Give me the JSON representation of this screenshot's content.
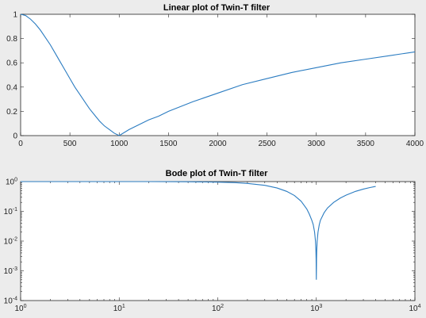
{
  "figure_background": "#ececec",
  "series_color": "#2b7cc1",
  "chart_data": [
    {
      "type": "line",
      "title": "Linear plot of Twin-T filter",
      "xlabel": "",
      "ylabel": "",
      "xlim": [
        0,
        4000
      ],
      "ylim": [
        0,
        1
      ],
      "xscale": "linear",
      "yscale": "linear",
      "grid": false,
      "legend": "none",
      "xticks": [
        0,
        500,
        1000,
        1500,
        2000,
        2500,
        3000,
        3500,
        4000
      ],
      "xtick_labels": [
        "0",
        "500",
        "1000",
        "1500",
        "2000",
        "2500",
        "3000",
        "3500",
        "4000"
      ],
      "yticks": [
        0,
        0.2,
        0.4,
        0.6,
        0.8,
        1
      ],
      "ytick_labels": [
        "0",
        "0.2",
        "0.4",
        "0.6",
        "0.8",
        "1"
      ],
      "series": [
        {
          "x": [
            0,
            50,
            100,
            150,
            200,
            250,
            300,
            350,
            400,
            450,
            500,
            550,
            600,
            650,
            700,
            750,
            800,
            850,
            900,
            950,
            1000,
            1100,
            1200,
            1300,
            1400,
            1500,
            1750,
            2000,
            2250,
            2500,
            2750,
            3000,
            3250,
            3500,
            3750,
            4000
          ],
          "y": [
            1.0,
            0.99,
            0.96,
            0.92,
            0.87,
            0.81,
            0.75,
            0.68,
            0.61,
            0.54,
            0.47,
            0.4,
            0.34,
            0.28,
            0.22,
            0.17,
            0.12,
            0.08,
            0.05,
            0.02,
            0.0,
            0.05,
            0.09,
            0.13,
            0.16,
            0.2,
            0.28,
            0.35,
            0.42,
            0.47,
            0.52,
            0.56,
            0.6,
            0.63,
            0.66,
            0.69
          ]
        }
      ]
    },
    {
      "type": "line",
      "title": "Bode plot of Twin-T filter",
      "xlabel": "",
      "ylabel": "",
      "xlim": [
        1,
        10000
      ],
      "ylim": [
        0.0001,
        1
      ],
      "xscale": "log",
      "yscale": "log",
      "grid": false,
      "legend": "none",
      "xticks": [
        1,
        10,
        100,
        1000,
        10000
      ],
      "xtick_labels": [
        "10^0",
        "10^1",
        "10^2",
        "10^3",
        "10^4"
      ],
      "yticks": [
        1,
        0.1,
        0.01,
        0.001,
        0.0001
      ],
      "ytick_labels": [
        "10^0",
        "10^-1",
        "10^-2",
        "10^-3",
        "10^-4"
      ],
      "series": [
        {
          "x": [
            1,
            2,
            5,
            10,
            20,
            50,
            100,
            150,
            200,
            300,
            400,
            500,
            600,
            700,
            800,
            850,
            900,
            930,
            960,
            980,
            990,
            995,
            1000,
            1005,
            1010,
            1020,
            1040,
            1070,
            1100,
            1200,
            1300,
            1500,
            1750,
            2000,
            2500,
            3000,
            3500,
            4000
          ],
          "y": [
            1.0,
            1.0,
            1.0,
            1.0,
            1.0,
            0.99,
            0.96,
            0.92,
            0.87,
            0.75,
            0.61,
            0.47,
            0.34,
            0.22,
            0.12,
            0.08,
            0.05,
            0.036,
            0.02,
            0.01,
            0.005,
            0.0025,
            0.0005,
            0.0025,
            0.005,
            0.01,
            0.02,
            0.035,
            0.05,
            0.09,
            0.13,
            0.2,
            0.28,
            0.35,
            0.47,
            0.56,
            0.63,
            0.69
          ]
        }
      ]
    }
  ]
}
